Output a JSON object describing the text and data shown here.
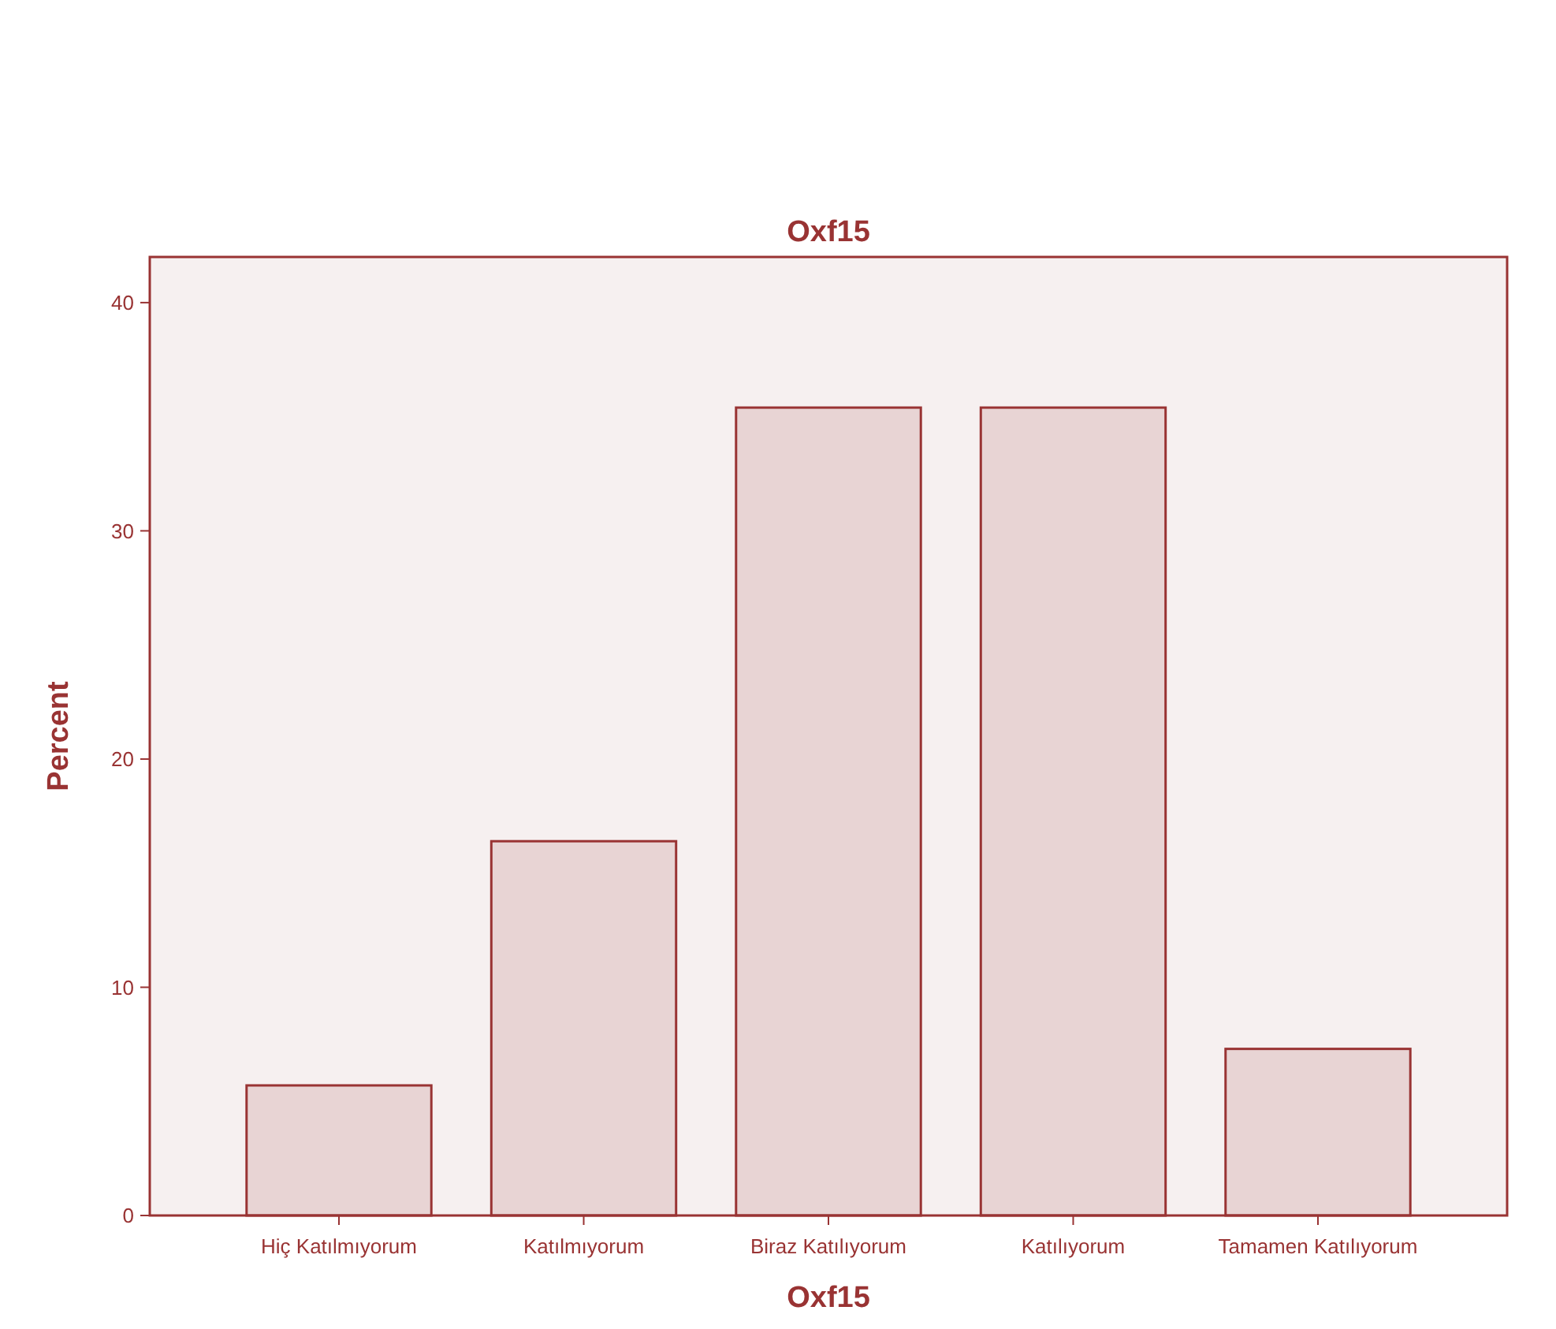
{
  "chart_data": {
    "type": "bar",
    "title": "Oxf15",
    "xlabel": "Oxf15",
    "ylabel": "Percent",
    "categories": [
      "Hiç Katılmıyorum",
      "Katılmıyorum",
      "Biraz Katılıyorum",
      "Katılıyorum",
      "Tamamen Katılıyorum"
    ],
    "values": [
      5.7,
      16.4,
      35.4,
      35.4,
      7.3
    ],
    "color": "#e8d4d4",
    "ylim": [
      0,
      42
    ],
    "yticks": [
      0,
      10,
      20,
      30,
      40
    ],
    "grid": false
  }
}
